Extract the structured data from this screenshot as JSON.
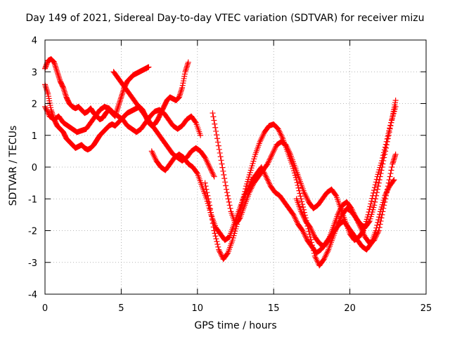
{
  "chart_data": {
    "type": "scatter",
    "title": "Day 149 of 2021, Sidereal Day-to-day VTEC variation (SDTVAR) for receiver mizu",
    "xlabel": "GPS time / hours",
    "ylabel": "SDTVAR / TECUs",
    "xlim": [
      0,
      25
    ],
    "ylim": [
      -4,
      4
    ],
    "xticks": [
      "0",
      "5",
      "10",
      "15",
      "20",
      "25"
    ],
    "yticks": [
      "4",
      "3",
      "2",
      "1",
      "0",
      "-1",
      "-2",
      "-3",
      "-4"
    ],
    "grid": true,
    "marker": "+",
    "color": "#ff0000",
    "series": [
      {
        "x": [
          0.0,
          0.2,
          0.4,
          0.6,
          0.8,
          1.0,
          1.2,
          1.4,
          1.6,
          1.8,
          2.0,
          2.2,
          2.4,
          2.6,
          2.8,
          3.0,
          3.2,
          3.4,
          3.6,
          3.8,
          4.0,
          4.2,
          4.4,
          4.6,
          4.8,
          5.0,
          5.2,
          5.4,
          5.6,
          5.8,
          6.0,
          6.2,
          6.4,
          6.6,
          6.8
        ],
        "y": [
          3.1,
          3.35,
          3.4,
          3.3,
          3.0,
          2.7,
          2.5,
          2.2,
          2.0,
          1.9,
          1.85,
          1.9,
          1.8,
          1.7,
          1.75,
          1.85,
          1.7,
          1.6,
          1.5,
          1.55,
          1.7,
          1.8,
          1.7,
          1.6,
          1.9,
          2.2,
          2.5,
          2.7,
          2.8,
          2.9,
          2.95,
          3.0,
          3.05,
          3.1,
          3.15
        ]
      },
      {
        "x": [
          0.0,
          0.2,
          0.4,
          0.6,
          0.8,
          1.0,
          1.2,
          1.4,
          1.6,
          1.8,
          2.0,
          2.2,
          2.4,
          2.6,
          2.8,
          3.0,
          3.2,
          3.4,
          3.6,
          3.8,
          4.0,
          4.2,
          4.4,
          4.6,
          4.8,
          5.0,
          5.2,
          5.4,
          5.6,
          5.8,
          6.0,
          6.2,
          6.4,
          6.6,
          6.8,
          7.0,
          7.2,
          7.4,
          7.6,
          7.8,
          8.0,
          8.2,
          8.4,
          8.6,
          8.8,
          9.0,
          9.2,
          9.4
        ],
        "y": [
          2.6,
          2.3,
          1.8,
          1.5,
          1.3,
          1.2,
          1.1,
          0.9,
          0.8,
          0.7,
          0.6,
          0.65,
          0.7,
          0.6,
          0.55,
          0.6,
          0.7,
          0.85,
          1.0,
          1.1,
          1.2,
          1.3,
          1.35,
          1.3,
          1.4,
          1.5,
          1.6,
          1.7,
          1.75,
          1.8,
          1.85,
          1.9,
          1.8,
          1.6,
          1.4,
          1.3,
          1.35,
          1.5,
          1.7,
          1.9,
          2.1,
          2.2,
          2.15,
          2.1,
          2.2,
          2.5,
          3.0,
          3.3
        ]
      },
      {
        "x": [
          0.0,
          0.3,
          0.6,
          0.9,
          1.2,
          1.5,
          1.8,
          2.1,
          2.4,
          2.7,
          3.0,
          3.3,
          3.6,
          3.9,
          4.2,
          4.5,
          4.8,
          5.1,
          5.4,
          5.7,
          6.0,
          6.3,
          6.6,
          6.9,
          7.2,
          7.5,
          7.8,
          8.1,
          8.4,
          8.7,
          9.0,
          9.3,
          9.6,
          9.9,
          10.2
        ],
        "y": [
          1.9,
          1.6,
          1.5,
          1.6,
          1.4,
          1.3,
          1.2,
          1.1,
          1.15,
          1.2,
          1.4,
          1.6,
          1.8,
          1.9,
          1.85,
          1.7,
          1.6,
          1.5,
          1.3,
          1.2,
          1.1,
          1.2,
          1.4,
          1.6,
          1.75,
          1.8,
          1.7,
          1.5,
          1.3,
          1.2,
          1.3,
          1.5,
          1.6,
          1.4,
          1.0
        ]
      },
      {
        "x": [
          4.5,
          4.8,
          5.1,
          5.4,
          5.7,
          6.0,
          6.3,
          6.6,
          6.9,
          7.2,
          7.5,
          7.8,
          8.1,
          8.4,
          8.7,
          9.0,
          9.3,
          9.6,
          9.9,
          10.2,
          10.5,
          10.8,
          11.1
        ],
        "y": [
          3.0,
          2.8,
          2.6,
          2.4,
          2.2,
          2.0,
          1.8,
          1.6,
          1.4,
          1.2,
          1.0,
          0.8,
          0.6,
          0.4,
          0.3,
          0.2,
          0.3,
          0.5,
          0.6,
          0.5,
          0.3,
          0.0,
          -0.3
        ]
      },
      {
        "x": [
          7.0,
          7.3,
          7.6,
          7.9,
          8.2,
          8.5,
          8.8,
          9.1,
          9.4,
          9.7,
          10.0,
          10.3,
          10.6,
          10.9,
          11.2,
          11.5,
          11.8,
          12.1,
          12.4,
          12.7,
          13.0,
          13.3,
          13.6,
          13.9,
          14.2,
          14.5,
          14.8,
          15.1,
          15.4,
          15.7,
          16.0,
          16.3,
          16.6,
          16.9,
          17.2,
          17.5,
          17.8,
          18.1,
          18.4,
          18.7,
          19.0,
          19.3,
          19.6,
          19.9,
          20.2,
          20.5,
          20.8,
          21.1,
          21.4,
          21.7,
          22.0,
          22.3,
          22.6,
          22.9
        ],
        "y": [
          0.5,
          0.2,
          0.0,
          -0.1,
          0.1,
          0.3,
          0.4,
          0.3,
          0.1,
          0.0,
          -0.2,
          -0.6,
          -1.0,
          -1.5,
          -1.9,
          -2.1,
          -2.3,
          -2.2,
          -1.8,
          -1.4,
          -1.0,
          -0.7,
          -0.4,
          -0.2,
          0.0,
          -0.3,
          -0.6,
          -0.8,
          -0.9,
          -1.1,
          -1.3,
          -1.5,
          -1.8,
          -2.0,
          -2.3,
          -2.5,
          -2.7,
          -2.6,
          -2.4,
          -2.2,
          -2.0,
          -1.8,
          -1.7,
          -1.9,
          -2.1,
          -2.3,
          -2.5,
          -2.6,
          -2.4,
          -2.0,
          -1.4,
          -0.9,
          -0.6,
          -0.4
        ]
      },
      {
        "x": [
          10.5,
          10.8,
          11.1,
          11.4,
          11.7,
          12.0,
          12.3,
          12.6,
          12.9,
          13.2,
          13.5,
          13.8,
          14.1,
          14.4,
          14.7,
          15.0,
          15.3,
          15.6,
          15.9,
          16.2,
          16.5,
          16.8,
          17.1,
          17.4,
          17.7,
          18.0,
          18.3,
          18.6,
          18.9,
          19.2,
          19.5,
          19.8,
          20.1,
          20.4,
          20.7,
          21.0,
          21.3,
          21.6,
          21.9,
          22.2,
          22.5,
          22.8,
          23.0
        ],
        "y": [
          -0.5,
          -1.2,
          -2.0,
          -2.6,
          -2.9,
          -2.7,
          -2.3,
          -1.8,
          -1.2,
          -0.6,
          -0.1,
          0.4,
          0.8,
          1.1,
          1.3,
          1.35,
          1.2,
          0.9,
          0.5,
          0.1,
          -0.4,
          -1.0,
          -1.6,
          -2.2,
          -2.8,
          -3.1,
          -2.9,
          -2.6,
          -2.2,
          -1.8,
          -1.5,
          -1.3,
          -1.4,
          -1.6,
          -1.8,
          -1.9,
          -1.7,
          -1.2,
          -0.5,
          0.2,
          0.9,
          1.6,
          2.1
        ]
      },
      {
        "x": [
          11.0,
          11.3,
          11.6,
          11.9,
          12.2,
          12.5,
          12.8,
          13.1,
          13.4,
          13.7,
          14.0,
          14.3,
          14.6,
          14.9,
          15.2,
          15.5,
          15.8,
          16.1,
          16.4,
          16.7,
          17.0,
          17.3,
          17.6,
          17.9,
          18.2,
          18.5,
          18.8,
          19.1,
          19.4,
          19.7,
          20.0,
          20.3,
          20.6,
          20.9,
          21.2,
          21.5,
          21.8,
          22.1,
          22.4,
          22.7,
          23.0
        ],
        "y": [
          1.7,
          0.9,
          0.1,
          -0.7,
          -1.4,
          -1.8,
          -1.6,
          -1.2,
          -0.8,
          -0.5,
          -0.3,
          -0.1,
          0.1,
          0.4,
          0.7,
          0.8,
          0.7,
          0.4,
          0.0,
          -0.4,
          -0.8,
          -1.1,
          -1.3,
          -1.2,
          -1.0,
          -0.8,
          -0.7,
          -0.9,
          -1.3,
          -1.7,
          -2.1,
          -2.3,
          -2.2,
          -2.0,
          -1.5,
          -0.9,
          -0.3,
          0.2,
          0.8,
          1.4,
          1.9
        ]
      },
      {
        "x": [
          16.5,
          16.8,
          17.1,
          17.4,
          17.7,
          18.0,
          18.3,
          18.6,
          18.9,
          19.2,
          19.5,
          19.8,
          20.1,
          20.4,
          20.7,
          21.0,
          21.3,
          21.6,
          21.9,
          22.2,
          22.5,
          22.8,
          23.0
        ],
        "y": [
          -1.0,
          -1.4,
          -1.7,
          -1.9,
          -2.2,
          -2.4,
          -2.5,
          -2.3,
          -1.9,
          -1.5,
          -1.2,
          -1.1,
          -1.3,
          -1.6,
          -1.9,
          -2.2,
          -2.4,
          -2.3,
          -2.0,
          -1.3,
          -0.6,
          0.1,
          0.4
        ]
      }
    ]
  }
}
